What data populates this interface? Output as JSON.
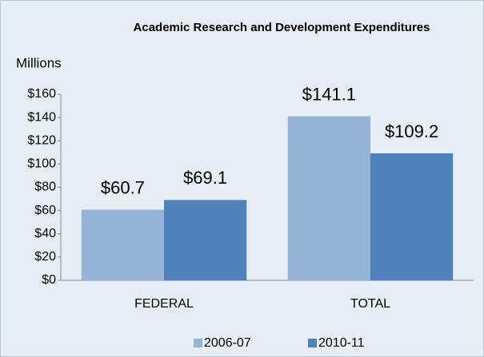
{
  "chart_data": {
    "type": "bar",
    "title": "Academic Research and Development Expenditures",
    "y_label": "Millions",
    "categories": [
      "FEDERAL",
      "TOTAL"
    ],
    "series": [
      {
        "name": "2006-07",
        "color": "#95b3d7",
        "values": [
          60.7,
          141.1
        ],
        "value_labels": [
          "$60.7",
          "$141.1"
        ]
      },
      {
        "name": "2010-11",
        "color": "#4f81bd",
        "values": [
          69.1,
          109.2
        ],
        "value_labels": [
          "$69.1",
          "$109.2"
        ]
      }
    ],
    "ylim": [
      0,
      160
    ],
    "yticks": [
      {
        "value": 0,
        "label": "$0"
      },
      {
        "value": 20,
        "label": "$20"
      },
      {
        "value": 40,
        "label": "$40"
      },
      {
        "value": 60,
        "label": "$60"
      },
      {
        "value": 80,
        "label": "$80"
      },
      {
        "value": 100,
        "label": "$100"
      },
      {
        "value": 120,
        "label": "$120"
      },
      {
        "value": 140,
        "label": "$140"
      },
      {
        "value": 160,
        "label": "$160"
      }
    ],
    "legend": "bottom"
  }
}
